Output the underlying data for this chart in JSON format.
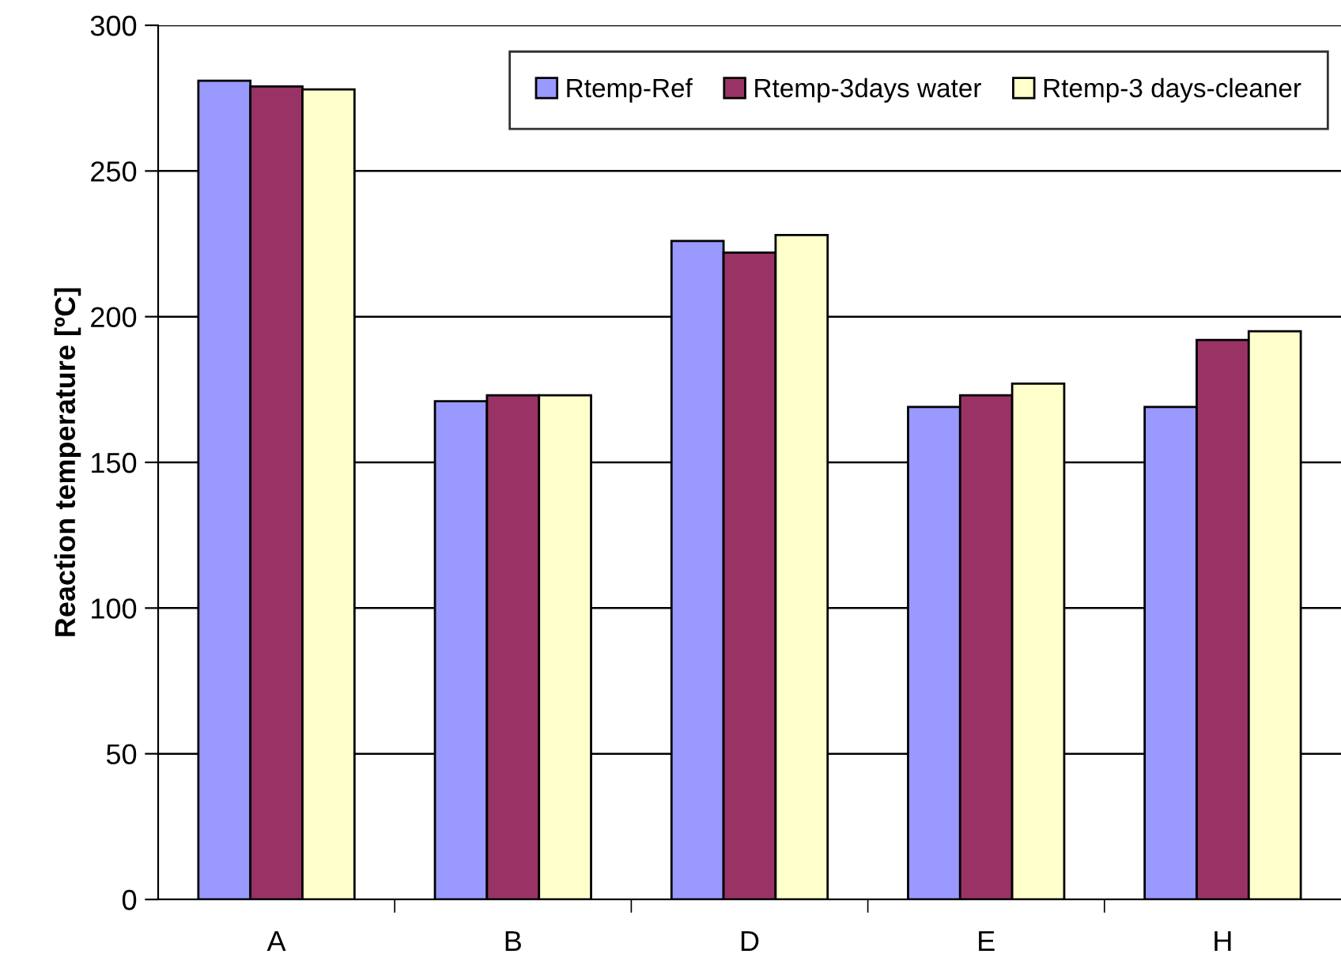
{
  "chart_data": {
    "type": "bar",
    "ylabel": "Reaction temperature [ºC]",
    "categories": [
      "A",
      "B",
      "D",
      "E",
      "H"
    ],
    "series": [
      {
        "name": "Rtemp-Ref",
        "color": "#9999ff",
        "values": [
          281,
          171,
          226,
          169,
          169
        ]
      },
      {
        "name": "Rtemp-3days water",
        "color": "#993366",
        "values": [
          279,
          173,
          222,
          173,
          192
        ]
      },
      {
        "name": "Rtemp-3 days-cleaner",
        "color": "#ffffcc",
        "values": [
          278,
          173,
          228,
          177,
          195
        ]
      }
    ],
    "ylim": [
      0,
      300
    ],
    "yticks": [
      0,
      50,
      100,
      150,
      200,
      250,
      300
    ],
    "grid": "y",
    "legend": "top right"
  }
}
